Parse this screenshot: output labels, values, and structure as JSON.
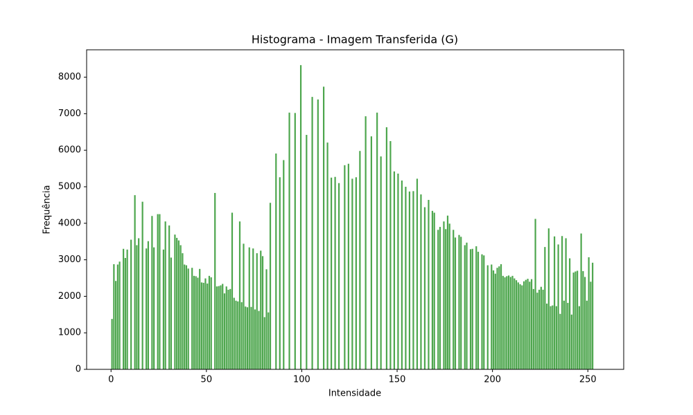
{
  "chart_data": {
    "type": "histogram",
    "title": "Histograma - Imagem Transferida (G)",
    "x_label": "Intensidade",
    "y_label": "Frequência",
    "color": "#4da64d",
    "grid": false,
    "bins": [
      0,
      1,
      2,
      3,
      4,
      5,
      6,
      7,
      8,
      9,
      10,
      11,
      12,
      13,
      14,
      15,
      16,
      17,
      18,
      19,
      20,
      21,
      22,
      23,
      24,
      25,
      26,
      27,
      28,
      29,
      30,
      31,
      32,
      33,
      34,
      35,
      36,
      37,
      38,
      39,
      40,
      41,
      42,
      43,
      44,
      45,
      46,
      47,
      48,
      49,
      50,
      51,
      52,
      53,
      54,
      55,
      56,
      57,
      58,
      59,
      60,
      61,
      62,
      63,
      64,
      65,
      66,
      67,
      68,
      69,
      70,
      71,
      72,
      73,
      74,
      75,
      76,
      77,
      78,
      79,
      80,
      81,
      82,
      83,
      84,
      85,
      86,
      87,
      88,
      89,
      90,
      91,
      92,
      93,
      94,
      95,
      96,
      97,
      98,
      99,
      100,
      101,
      102,
      103,
      104,
      105,
      106,
      107,
      108,
      109,
      110,
      111,
      112,
      113,
      114,
      115,
      116,
      117,
      118,
      119,
      120,
      121,
      122,
      123,
      124,
      125,
      126,
      127,
      128,
      129,
      130,
      131,
      132,
      133,
      134,
      135,
      136,
      137,
      138,
      139,
      140,
      141,
      142,
      143,
      144,
      145,
      146,
      147,
      148,
      149,
      150,
      151,
      152,
      153,
      154,
      155,
      156,
      157,
      158,
      159,
      160,
      161,
      162,
      163,
      164,
      165,
      166,
      167,
      168,
      169,
      170,
      171,
      172,
      173,
      174,
      175,
      176,
      177,
      178,
      179,
      180,
      181,
      182,
      183,
      184,
      185,
      186,
      187,
      188,
      189,
      190,
      191,
      192,
      193,
      194,
      195,
      196,
      197,
      198,
      199,
      200,
      201,
      202,
      203,
      204,
      205,
      206,
      207,
      208,
      209,
      210,
      211,
      212,
      213,
      214,
      215,
      216,
      217,
      218,
      219,
      220,
      221,
      222,
      223,
      224,
      225,
      226,
      227,
      228,
      229,
      230,
      231,
      232,
      233,
      234,
      235,
      236,
      237,
      238,
      239,
      240,
      241,
      242,
      243,
      244,
      245,
      246,
      247,
      248,
      249,
      250,
      251,
      252,
      253,
      254,
      255,
      256
    ],
    "counts": [
      1380,
      2880,
      2420,
      2870,
      2950,
      0,
      3300,
      3050,
      3280,
      0,
      3550,
      0,
      4770,
      3400,
      3590,
      0,
      4590,
      0,
      3310,
      3510,
      0,
      4200,
      3340,
      0,
      4250,
      4250,
      0,
      3280,
      4050,
      0,
      3940,
      3060,
      0,
      3690,
      3600,
      3530,
      3400,
      3180,
      2870,
      2850,
      2760,
      0,
      2780,
      2560,
      2550,
      2510,
      2750,
      2380,
      2370,
      2490,
      2350,
      2560,
      2520,
      0,
      4830,
      2270,
      2280,
      2300,
      2340,
      2080,
      2270,
      2180,
      2200,
      4290,
      1960,
      1880,
      1860,
      4050,
      1840,
      3440,
      1720,
      1700,
      3340,
      1710,
      3310,
      1640,
      3180,
      1600,
      3250,
      3100,
      1430,
      2740,
      1560,
      4560,
      0,
      0,
      5910,
      0,
      5260,
      0,
      5730,
      0,
      0,
      7030,
      0,
      0,
      7020,
      0,
      0,
      8330,
      0,
      0,
      6420,
      0,
      0,
      7460,
      0,
      0,
      7390,
      0,
      0,
      7740,
      0,
      6210,
      0,
      5250,
      0,
      5270,
      0,
      5100,
      0,
      0,
      5590,
      0,
      5630,
      0,
      5220,
      0,
      5260,
      0,
      5980,
      0,
      0,
      6930,
      0,
      0,
      6380,
      0,
      0,
      7030,
      0,
      5830,
      0,
      0,
      6630,
      0,
      6250,
      0,
      5420,
      0,
      5360,
      0,
      5170,
      0,
      5000,
      0,
      4870,
      0,
      4880,
      0,
      5220,
      0,
      4790,
      0,
      4440,
      0,
      4640,
      0,
      4340,
      4290,
      0,
      3820,
      3900,
      0,
      4050,
      3840,
      4210,
      3990,
      0,
      3820,
      3610,
      0,
      3680,
      3630,
      0,
      3400,
      3470,
      0,
      3290,
      3300,
      0,
      3370,
      3220,
      0,
      3150,
      3120,
      0,
      2850,
      0,
      2870,
      2710,
      2620,
      2780,
      2820,
      2880,
      2560,
      2520,
      2550,
      2570,
      2530,
      2560,
      2490,
      2440,
      2380,
      2330,
      2300,
      2410,
      2450,
      2480,
      2400,
      2470,
      2200,
      4120,
      2100,
      2180,
      2260,
      2180,
      3350,
      1800,
      3860,
      1730,
      1750,
      3640,
      1730,
      3420,
      1520,
      3650,
      1880,
      3590,
      1820,
      3040,
      1500,
      2650,
      2680,
      2700,
      1730,
      3720,
      2690,
      2530,
      1880,
      3070,
      2400,
      2920,
      0,
      0,
      0
    ],
    "xlim": [
      -12.8,
      268.8
    ],
    "xticks": [
      0,
      50,
      100,
      150,
      200,
      250
    ],
    "ylim": [
      0,
      8750
    ],
    "yticks": [
      0,
      1000,
      2000,
      3000,
      4000,
      5000,
      6000,
      7000,
      8000
    ]
  }
}
